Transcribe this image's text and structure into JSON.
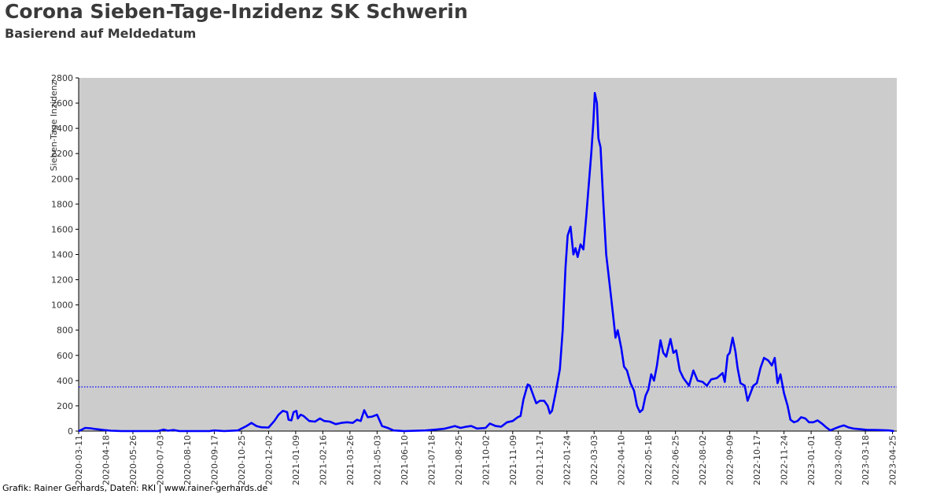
{
  "header": {
    "title": "Corona Sieben-Tage-Inzidenz SK Schwerin",
    "subtitle": "Basierend auf Meldedatum"
  },
  "footer": {
    "credit": "Grafik: Rainer Gerhards, Daten: RKI | www.rainer-gerhards.de"
  },
  "colors": {
    "plot_background": "#cccccc",
    "series_line": "#0000ff",
    "reference_line": "#0000ff"
  },
  "chart_data": {
    "type": "line",
    "title": "Corona Sieben-Tage-Inzidenz SK Schwerin",
    "subtitle": "Basierend auf Meldedatum",
    "xlabel": "",
    "ylabel": "Sieben-Tage Inzidenz",
    "ylim": [
      0,
      2800
    ],
    "xlim": [
      "2020-03-11",
      "2023-05-01"
    ],
    "yticks": [
      0,
      200,
      400,
      600,
      800,
      1000,
      1200,
      1400,
      1600,
      1800,
      2000,
      2200,
      2400,
      2600,
      2800
    ],
    "xticks": [
      "2020-03-11",
      "2020-04-18",
      "2020-05-26",
      "2020-07-03",
      "2020-08-10",
      "2020-09-17",
      "2020-10-25",
      "2020-12-02",
      "2021-01-09",
      "2021-02-16",
      "2021-03-26",
      "2021-05-03",
      "2021-06-10",
      "2021-07-18",
      "2021-08-25",
      "2021-10-02",
      "2021-11-09",
      "2021-12-17",
      "2022-01-24",
      "2022-03-03",
      "2022-04-10",
      "2022-05-18",
      "2022-06-25",
      "2022-08-02",
      "2022-09-09",
      "2022-10-17",
      "2022-11-24",
      "2023-01-01",
      "2023-02-08",
      "2023-03-18",
      "2023-04-25"
    ],
    "grid": false,
    "reference_line": {
      "y": 350,
      "style": "dotted"
    },
    "series": [
      {
        "points": [
          [
            "2020-03-11",
            0
          ],
          [
            "2020-03-15",
            10
          ],
          [
            "2020-03-20",
            25
          ],
          [
            "2020-03-28",
            22
          ],
          [
            "2020-04-05",
            15
          ],
          [
            "2020-04-15",
            8
          ],
          [
            "2020-04-25",
            3
          ],
          [
            "2020-05-10",
            0
          ],
          [
            "2020-06-30",
            0
          ],
          [
            "2020-07-08",
            12
          ],
          [
            "2020-07-14",
            3
          ],
          [
            "2020-07-22",
            8
          ],
          [
            "2020-07-30",
            0
          ],
          [
            "2020-09-10",
            0
          ],
          [
            "2020-09-17",
            5
          ],
          [
            "2020-10-01",
            0
          ],
          [
            "2020-10-20",
            5
          ],
          [
            "2020-11-01",
            40
          ],
          [
            "2020-11-08",
            65
          ],
          [
            "2020-11-15",
            40
          ],
          [
            "2020-11-22",
            30
          ],
          [
            "2020-12-02",
            28
          ],
          [
            "2020-12-10",
            80
          ],
          [
            "2020-12-16",
            130
          ],
          [
            "2020-12-22",
            160
          ],
          [
            "2020-12-28",
            150
          ],
          [
            "2020-12-30",
            90
          ],
          [
            "2021-01-03",
            85
          ],
          [
            "2021-01-06",
            150
          ],
          [
            "2021-01-10",
            160
          ],
          [
            "2021-01-12",
            100
          ],
          [
            "2021-01-16",
            130
          ],
          [
            "2021-01-20",
            120
          ],
          [
            "2021-01-28",
            80
          ],
          [
            "2021-02-05",
            75
          ],
          [
            "2021-02-12",
            100
          ],
          [
            "2021-02-18",
            80
          ],
          [
            "2021-02-26",
            75
          ],
          [
            "2021-03-06",
            55
          ],
          [
            "2021-03-14",
            65
          ],
          [
            "2021-03-22",
            70
          ],
          [
            "2021-03-30",
            65
          ],
          [
            "2021-04-05",
            90
          ],
          [
            "2021-04-10",
            80
          ],
          [
            "2021-04-15",
            165
          ],
          [
            "2021-04-20",
            110
          ],
          [
            "2021-04-26",
            115
          ],
          [
            "2021-05-03",
            130
          ],
          [
            "2021-05-10",
            40
          ],
          [
            "2021-05-18",
            25
          ],
          [
            "2021-05-26",
            5
          ],
          [
            "2021-06-10",
            0
          ],
          [
            "2021-07-10",
            5
          ],
          [
            "2021-07-25",
            12
          ],
          [
            "2021-08-05",
            18
          ],
          [
            "2021-08-20",
            40
          ],
          [
            "2021-08-28",
            25
          ],
          [
            "2021-09-05",
            35
          ],
          [
            "2021-09-12",
            40
          ],
          [
            "2021-09-20",
            20
          ],
          [
            "2021-10-02",
            25
          ],
          [
            "2021-10-08",
            60
          ],
          [
            "2021-10-16",
            40
          ],
          [
            "2021-10-24",
            35
          ],
          [
            "2021-11-01",
            70
          ],
          [
            "2021-11-09",
            80
          ],
          [
            "2021-11-16",
            110
          ],
          [
            "2021-11-20",
            120
          ],
          [
            "2021-11-24",
            250
          ],
          [
            "2021-11-30",
            370
          ],
          [
            "2021-12-03",
            360
          ],
          [
            "2021-12-08",
            280
          ],
          [
            "2021-12-12",
            220
          ],
          [
            "2021-12-17",
            240
          ],
          [
            "2021-12-23",
            240
          ],
          [
            "2021-12-28",
            200
          ],
          [
            "2021-12-31",
            140
          ],
          [
            "2022-01-03",
            160
          ],
          [
            "2022-01-08",
            300
          ],
          [
            "2022-01-14",
            490
          ],
          [
            "2022-01-18",
            800
          ],
          [
            "2022-01-22",
            1300
          ],
          [
            "2022-01-25",
            1550
          ],
          [
            "2022-01-29",
            1620
          ],
          [
            "2022-02-02",
            1400
          ],
          [
            "2022-02-05",
            1450
          ],
          [
            "2022-02-08",
            1380
          ],
          [
            "2022-02-12",
            1480
          ],
          [
            "2022-02-16",
            1440
          ],
          [
            "2022-02-20",
            1700
          ],
          [
            "2022-02-24",
            1990
          ],
          [
            "2022-02-27",
            2200
          ],
          [
            "2022-03-02",
            2450
          ],
          [
            "2022-03-04",
            2680
          ],
          [
            "2022-03-07",
            2600
          ],
          [
            "2022-03-09",
            2320
          ],
          [
            "2022-03-12",
            2250
          ],
          [
            "2022-03-16",
            1800
          ],
          [
            "2022-03-20",
            1400
          ],
          [
            "2022-03-25",
            1150
          ],
          [
            "2022-03-30",
            900
          ],
          [
            "2022-04-02",
            740
          ],
          [
            "2022-04-05",
            800
          ],
          [
            "2022-04-10",
            660
          ],
          [
            "2022-04-14",
            510
          ],
          [
            "2022-04-18",
            480
          ],
          [
            "2022-04-23",
            380
          ],
          [
            "2022-04-28",
            320
          ],
          [
            "2022-05-02",
            200
          ],
          [
            "2022-05-06",
            150
          ],
          [
            "2022-05-10",
            170
          ],
          [
            "2022-05-14",
            280
          ],
          [
            "2022-05-18",
            330
          ],
          [
            "2022-05-22",
            450
          ],
          [
            "2022-05-26",
            400
          ],
          [
            "2022-05-30",
            520
          ],
          [
            "2022-06-04",
            720
          ],
          [
            "2022-06-08",
            620
          ],
          [
            "2022-06-12",
            590
          ],
          [
            "2022-06-18",
            730
          ],
          [
            "2022-06-22",
            620
          ],
          [
            "2022-06-26",
            640
          ],
          [
            "2022-07-01",
            480
          ],
          [
            "2022-07-06",
            420
          ],
          [
            "2022-07-14",
            360
          ],
          [
            "2022-07-20",
            480
          ],
          [
            "2022-07-26",
            400
          ],
          [
            "2022-08-02",
            390
          ],
          [
            "2022-08-08",
            360
          ],
          [
            "2022-08-14",
            410
          ],
          [
            "2022-08-22",
            420
          ],
          [
            "2022-08-30",
            460
          ],
          [
            "2022-09-02",
            390
          ],
          [
            "2022-09-06",
            600
          ],
          [
            "2022-09-09",
            620
          ],
          [
            "2022-09-13",
            740
          ],
          [
            "2022-09-17",
            630
          ],
          [
            "2022-09-20",
            500
          ],
          [
            "2022-09-24",
            380
          ],
          [
            "2022-09-30",
            360
          ],
          [
            "2022-10-04",
            240
          ],
          [
            "2022-10-08",
            300
          ],
          [
            "2022-10-12",
            360
          ],
          [
            "2022-10-17",
            380
          ],
          [
            "2022-10-22",
            500
          ],
          [
            "2022-10-27",
            580
          ],
          [
            "2022-11-02",
            560
          ],
          [
            "2022-11-07",
            520
          ],
          [
            "2022-11-11",
            580
          ],
          [
            "2022-11-15",
            380
          ],
          [
            "2022-11-19",
            450
          ],
          [
            "2022-11-24",
            300
          ],
          [
            "2022-11-29",
            200
          ],
          [
            "2022-12-03",
            90
          ],
          [
            "2022-12-08",
            70
          ],
          [
            "2022-12-13",
            80
          ],
          [
            "2022-12-18",
            110
          ],
          [
            "2022-12-24",
            100
          ],
          [
            "2022-12-29",
            70
          ],
          [
            "2023-01-04",
            70
          ],
          [
            "2023-01-10",
            85
          ],
          [
            "2023-01-16",
            60
          ],
          [
            "2023-01-22",
            30
          ],
          [
            "2023-01-28",
            5
          ],
          [
            "2023-02-03",
            20
          ],
          [
            "2023-02-10",
            35
          ],
          [
            "2023-02-16",
            45
          ],
          [
            "2023-02-22",
            30
          ],
          [
            "2023-03-01",
            20
          ],
          [
            "2023-03-10",
            15
          ],
          [
            "2023-03-20",
            10
          ],
          [
            "2023-04-05",
            8
          ],
          [
            "2023-04-20",
            5
          ],
          [
            "2023-04-27",
            0
          ]
        ]
      }
    ]
  }
}
